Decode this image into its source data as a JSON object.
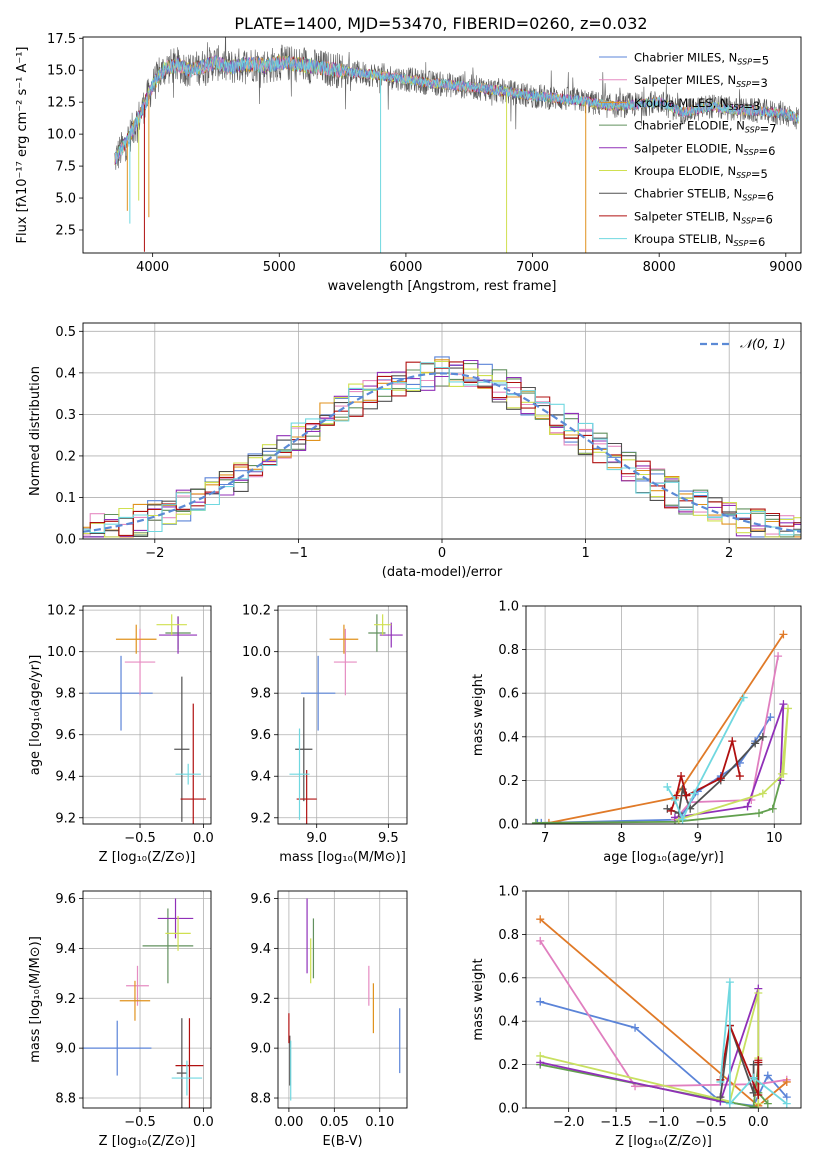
{
  "figure": {
    "title": "PLATE=1400, MJD=53470, FIBERID=0260, z=0.032"
  },
  "colors": {
    "series": [
      "#5b84d8",
      "#e68cc2",
      "#e0921e",
      "#62905e",
      "#9030b8",
      "#d0e050",
      "#505050",
      "#b01010",
      "#70d8e0"
    ],
    "fit_lines": [
      "#5b84d8",
      "#e07fbf",
      "#e07a28",
      "#62a04e",
      "#9030b8",
      "#c8e060",
      "#505050",
      "#b01010",
      "#70d8e0"
    ],
    "gauss": "#5b8ad6",
    "grid": "#b0b0b0"
  },
  "chart_data": [
    {
      "id": "spectrum",
      "type": "line",
      "xlabel": "wavelength [Angstrom, rest frame]",
      "ylabel": "Flux [fλ10⁻¹⁷ erg cm⁻² s⁻¹ A⁻¹]",
      "xlim": [
        3450,
        9120
      ],
      "ylim": [
        0.7,
        17.6
      ],
      "xticks": [
        "4000",
        "5000",
        "6000",
        "7000",
        "8000",
        "9000"
      ],
      "yticks": [
        "2.5",
        "5.0",
        "7.5",
        "10.0",
        "12.5",
        "15.0",
        "17.5"
      ],
      "grid": false,
      "legend_position": "top-right",
      "legend": [
        "Chabrier MILES, N_SSP=5",
        "Salpeter MILES, N_SSP=3",
        "Kroupa MILES, N_SSP=3",
        "Chabrier ELODIE, N_SSP=7",
        "Salpeter ELODIE, N_SSP=6",
        "Kroupa ELODIE, N_SSP=5",
        "Chabrier STELIB, N_SSP=6",
        "Salpeter STELIB, N_SSP=6",
        "Kroupa STELIB, N_SSP=6"
      ],
      "continuum": {
        "x": [
          3700,
          3800,
          3900,
          4000,
          4100,
          4200,
          4300,
          4400,
          4500,
          4600,
          4700,
          4800,
          4900,
          5000,
          5200,
          5400,
          5600,
          5800,
          6000,
          6200,
          6400,
          6600,
          6800,
          7000,
          7200,
          7400,
          7600,
          7800,
          8000,
          8200,
          8400,
          8600,
          8800,
          9000,
          9100
        ],
        "y": [
          8.0,
          9.5,
          11.5,
          13.8,
          15.2,
          15.4,
          15.0,
          15.3,
          15.6,
          15.2,
          15.4,
          15.5,
          15.3,
          15.6,
          15.4,
          15.1,
          14.8,
          14.6,
          14.3,
          14.0,
          13.8,
          13.6,
          13.3,
          13.0,
          12.8,
          12.6,
          12.2,
          12.3,
          12.5,
          11.7,
          12.2,
          11.9,
          11.8,
          11.6,
          11.2
        ]
      },
      "absorption_spikes": [
        {
          "x": 3800,
          "y": 4.0
        },
        {
          "x": 3820,
          "y": 3.0
        },
        {
          "x": 3890,
          "y": 4.8
        },
        {
          "x": 3935,
          "y": 0.8
        },
        {
          "x": 3970,
          "y": 3.5
        },
        {
          "x": 5800,
          "y": 0.7
        },
        {
          "x": 6795,
          "y": 0.7
        },
        {
          "x": 7420,
          "y": 0.7
        }
      ]
    },
    {
      "id": "residuals",
      "type": "histogram",
      "xlabel": "(data-model)/error",
      "ylabel": "Normed distribution",
      "xlim": [
        -2.5,
        2.5
      ],
      "ylim": [
        0,
        0.52
      ],
      "xticks": [
        "−2",
        "−1",
        "0",
        "1",
        "2"
      ],
      "yticks": [
        "0.0",
        "0.1",
        "0.2",
        "0.3",
        "0.4",
        "0.5"
      ],
      "grid": true,
      "legend_position": "top-right",
      "legend": [
        "𝒩(0, 1)"
      ],
      "bin_width": 0.1
    },
    {
      "id": "age_vs_Z",
      "type": "errorbar",
      "xlabel": "Z [log₁₀(Z/Z⊙)]",
      "ylabel": "age  [log₁₀(age/yr)]",
      "xlim": [
        -0.95,
        0.06
      ],
      "ylim": [
        9.17,
        10.22
      ],
      "xticks": [
        "−0.5",
        "0.0"
      ],
      "yticks": [
        "9.2",
        "9.4",
        "9.6",
        "9.8",
        "10.0",
        "10.2"
      ],
      "grid": true,
      "points": [
        {
          "x": -0.65,
          "y": 9.8,
          "xerr": 0.25,
          "yerr": 0.18,
          "c": 0
        },
        {
          "x": -0.5,
          "y": 9.95,
          "xerr": 0.12,
          "yerr": 0.16,
          "c": 1
        },
        {
          "x": -0.53,
          "y": 10.06,
          "xerr": 0.16,
          "yerr": 0.07,
          "c": 2
        },
        {
          "x": -0.2,
          "y": 10.09,
          "xerr": 0.1,
          "yerr": 0.08,
          "c": 3
        },
        {
          "x": -0.2,
          "y": 10.08,
          "xerr": 0.15,
          "yerr": 0.09,
          "c": 4
        },
        {
          "x": -0.25,
          "y": 10.13,
          "xerr": 0.12,
          "yerr": 0.05,
          "c": 5
        },
        {
          "x": -0.17,
          "y": 9.53,
          "xerr": 0.06,
          "yerr": 0.35,
          "c": 6
        },
        {
          "x": -0.08,
          "y": 9.29,
          "xerr": 0.1,
          "yerr": 0.46,
          "c": 7
        },
        {
          "x": -0.12,
          "y": 9.41,
          "xerr": 0.1,
          "yerr": 0.05,
          "c": 8
        }
      ]
    },
    {
      "id": "age_vs_mass",
      "type": "errorbar",
      "xlabel": "mass [log₁₀(M/M⊙)]",
      "ylabel": "",
      "xlim": [
        8.73,
        9.63
      ],
      "ylim": [
        9.17,
        10.22
      ],
      "xticks": [
        "9.0",
        "9.5"
      ],
      "yticks": [
        "9.2",
        "9.4",
        "9.6",
        "9.8",
        "10.0",
        "10.2"
      ],
      "grid": true,
      "points": [
        {
          "x": 9.01,
          "y": 9.8,
          "xerr": 0.12,
          "yerr": 0.18,
          "c": 0
        },
        {
          "x": 9.2,
          "y": 9.95,
          "xerr": 0.08,
          "yerr": 0.16,
          "c": 1
        },
        {
          "x": 9.19,
          "y": 10.06,
          "xerr": 0.1,
          "yerr": 0.07,
          "c": 2
        },
        {
          "x": 9.42,
          "y": 10.09,
          "xerr": 0.06,
          "yerr": 0.09,
          "c": 3
        },
        {
          "x": 9.52,
          "y": 10.08,
          "xerr": 0.08,
          "yerr": 0.06,
          "c": 4
        },
        {
          "x": 9.46,
          "y": 10.13,
          "xerr": 0.06,
          "yerr": 0.05,
          "c": 5
        },
        {
          "x": 8.91,
          "y": 9.53,
          "xerr": 0.06,
          "yerr": 0.25,
          "c": 6
        },
        {
          "x": 8.93,
          "y": 9.29,
          "xerr": 0.07,
          "yerr": 0.14,
          "c": 7
        },
        {
          "x": 8.88,
          "y": 9.41,
          "xerr": 0.07,
          "yerr": 0.22,
          "c": 8
        }
      ]
    },
    {
      "id": "weight_vs_age",
      "type": "line",
      "xlabel": "age  [log₁₀(age/yr)]",
      "ylabel": "mass weight",
      "xlim": [
        6.75,
        10.35
      ],
      "ylim": [
        0,
        1.0
      ],
      "xticks": [
        "7",
        "8",
        "9",
        "10"
      ],
      "yticks": [
        "0.0",
        "0.2",
        "0.4",
        "0.6",
        "0.8",
        "1.0"
      ],
      "grid": true,
      "series": [
        {
          "c": 0,
          "x": [
            6.9,
            6.95,
            8.75,
            9.0,
            9.3,
            9.55,
            9.75,
            9.95
          ],
          "y": [
            0.005,
            0.005,
            0.02,
            0.15,
            0.22,
            0.28,
            0.38,
            0.49
          ]
        },
        {
          "c": 1,
          "x": [
            8.7,
            8.9,
            9.7,
            10.05
          ],
          "y": [
            0.02,
            0.1,
            0.11,
            0.77
          ]
        },
        {
          "c": 2,
          "x": [
            7.05,
            8.7,
            10.12
          ],
          "y": [
            0.005,
            0.12,
            0.87
          ]
        },
        {
          "c": 3,
          "x": [
            6.88,
            8.7,
            9.8,
            9.98,
            10.08
          ],
          "y": [
            0.005,
            0.01,
            0.05,
            0.07,
            0.2
          ]
        },
        {
          "c": 4,
          "x": [
            8.7,
            9.65,
            10.12,
            10.08
          ],
          "y": [
            0.03,
            0.08,
            0.55,
            0.2
          ]
        },
        {
          "c": 5,
          "x": [
            8.75,
            9.85,
            10.12,
            10.18,
            10.1
          ],
          "y": [
            0.02,
            0.14,
            0.23,
            0.53,
            0.23
          ]
        },
        {
          "c": 6,
          "x": [
            8.6,
            8.75,
            8.8,
            8.9,
            9.3,
            9.75,
            9.85
          ],
          "y": [
            0.07,
            0.05,
            0.16,
            0.07,
            0.2,
            0.37,
            0.4
          ]
        },
        {
          "c": 7,
          "x": [
            8.65,
            8.72,
            8.78,
            8.85,
            9.3,
            9.45,
            9.55
          ],
          "y": [
            0.06,
            0.13,
            0.22,
            0.13,
            0.21,
            0.38,
            0.22
          ]
        },
        {
          "c": 8,
          "x": [
            8.6,
            8.7,
            8.8,
            8.95,
            9.6
          ],
          "y": [
            0.17,
            0.11,
            0.02,
            0.14,
            0.58
          ]
        }
      ]
    },
    {
      "id": "mass_vs_Z",
      "type": "errorbar",
      "xlabel": "Z [log₁₀(Z/Z⊙)]",
      "ylabel": "mass [log₁₀(M/M⊙)]",
      "xlim": [
        -0.95,
        0.06
      ],
      "ylim": [
        8.76,
        9.63
      ],
      "xticks": [
        "−0.5",
        "0.0"
      ],
      "yticks": [
        "8.8",
        "9.0",
        "9.2",
        "9.4",
        "9.6"
      ],
      "grid": true,
      "points": [
        {
          "x": -0.68,
          "y": 9.0,
          "xerr": 0.27,
          "yerr": 0.11,
          "c": 0
        },
        {
          "x": -0.52,
          "y": 9.25,
          "xerr": 0.09,
          "yerr": 0.08,
          "c": 1
        },
        {
          "x": -0.54,
          "y": 9.19,
          "xerr": 0.12,
          "yerr": 0.08,
          "c": 2
        },
        {
          "x": -0.28,
          "y": 9.41,
          "xerr": 0.2,
          "yerr": 0.15,
          "c": 3
        },
        {
          "x": -0.22,
          "y": 9.52,
          "xerr": 0.14,
          "yerr": 0.08,
          "c": 4
        },
        {
          "x": -0.2,
          "y": 9.46,
          "xerr": 0.1,
          "yerr": 0.07,
          "c": 5
        },
        {
          "x": -0.17,
          "y": 8.9,
          "xerr": 0.04,
          "yerr": 0.22,
          "c": 6
        },
        {
          "x": -0.11,
          "y": 8.93,
          "xerr": 0.11,
          "yerr": 0.19,
          "c": 7
        },
        {
          "x": -0.13,
          "y": 8.88,
          "xerr": 0.12,
          "yerr": 0.07,
          "c": 8
        }
      ]
    },
    {
      "id": "ebv",
      "type": "errorbar",
      "xlabel": "E(B-V)",
      "ylabel": "",
      "xlim": [
        -0.012,
        0.13
      ],
      "ylim": [
        8.76,
        9.63
      ],
      "xticks": [
        "0.00",
        "0.05",
        "0.10"
      ],
      "yticks": [
        "8.8",
        "9.0",
        "9.2",
        "9.4",
        "9.6"
      ],
      "grid": true,
      "points": [
        {
          "x": 0.122,
          "y": 9.03,
          "xerr": 0,
          "yerr": 0.13,
          "c": 0
        },
        {
          "x": 0.088,
          "y": 9.25,
          "xerr": 0,
          "yerr": 0.08,
          "c": 1
        },
        {
          "x": 0.093,
          "y": 9.16,
          "xerr": 0,
          "yerr": 0.1,
          "c": 2
        },
        {
          "x": 0.027,
          "y": 9.4,
          "xerr": 0,
          "yerr": 0.12,
          "c": 3
        },
        {
          "x": 0.02,
          "y": 9.45,
          "xerr": 0,
          "yerr": 0.15,
          "c": 4
        },
        {
          "x": 0.024,
          "y": 9.35,
          "xerr": 0,
          "yerr": 0.09,
          "c": 5
        },
        {
          "x": 0.001,
          "y": 8.95,
          "xerr": 0,
          "yerr": 0.1,
          "c": 6
        },
        {
          "x": 0.0,
          "y": 9.08,
          "xerr": 0,
          "yerr": 0.06,
          "c": 7
        },
        {
          "x": 0.002,
          "y": 8.91,
          "xerr": 0,
          "yerr": 0.12,
          "c": 8
        }
      ]
    },
    {
      "id": "weight_vs_Z",
      "type": "line",
      "xlabel": "Z [log₁₀(Z/Z⊙)]",
      "ylabel": "mass weight",
      "xlim": [
        -2.45,
        0.45
      ],
      "ylim": [
        0,
        1.0
      ],
      "xticks": [
        "−2.0",
        "−1.5",
        "−1.0",
        "−0.5",
        "0.0"
      ],
      "yticks": [
        "0.0",
        "0.2",
        "0.4",
        "0.6",
        "0.8",
        "1.0"
      ],
      "grid": true,
      "series": [
        {
          "c": 0,
          "x": [
            -2.3,
            -1.3,
            -0.4,
            -0.05,
            0.1,
            0.3
          ],
          "y": [
            0.49,
            0.37,
            0.03,
            0.01,
            0.15,
            0.05
          ]
        },
        {
          "c": 1,
          "x": [
            -2.3,
            -1.3,
            0.0,
            0.3
          ],
          "y": [
            0.77,
            0.1,
            0.11,
            0.13
          ]
        },
        {
          "c": 2,
          "x": [
            -2.3,
            0.0,
            0.3
          ],
          "y": [
            0.87,
            0.01,
            0.12
          ]
        },
        {
          "c": 3,
          "x": [
            -2.3,
            -0.05,
            0.0,
            0.0,
            0.1
          ],
          "y": [
            0.2,
            0.005,
            0.2,
            0.07,
            0.02
          ]
        },
        {
          "c": 4,
          "x": [
            -2.3,
            -0.4,
            0.0,
            0.0
          ],
          "y": [
            0.21,
            0.03,
            0.55,
            0.2
          ]
        },
        {
          "c": 5,
          "x": [
            -2.3,
            -0.3,
            0.0,
            0.0,
            0.0
          ],
          "y": [
            0.24,
            0.03,
            0.53,
            0.23,
            0.02
          ]
        },
        {
          "c": 6,
          "x": [
            -0.4,
            -0.3,
            -0.05,
            -0.05,
            0.0
          ],
          "y": [
            0.05,
            0.38,
            0.07,
            0.2,
            0.2
          ]
        },
        {
          "c": 7,
          "x": [
            -0.4,
            -0.3,
            0.0,
            0.0,
            0.0
          ],
          "y": [
            0.13,
            0.38,
            0.06,
            0.22,
            0.21
          ]
        },
        {
          "c": 8,
          "x": [
            -0.4,
            -0.3,
            -0.3,
            -0.05,
            0.3
          ],
          "y": [
            0.12,
            0.58,
            0.02,
            0.14,
            0.02
          ]
        }
      ]
    }
  ]
}
